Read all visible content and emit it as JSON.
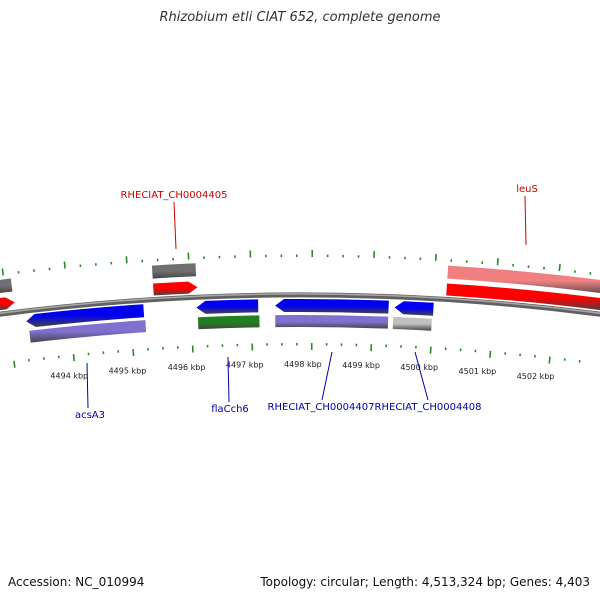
{
  "title": "Rhizobium etli CIAT 652, complete genome",
  "footer": {
    "accession": "Accession: NC_010994",
    "topology": "Topology: circular; Length: 4,513,324 bp; Genes: 4,403"
  },
  "colors": {
    "backbone": "#808080",
    "tick": "#2a8a2a",
    "forward_gene": "#ff0000",
    "forward_feature": "#f08080",
    "forward_label": "#cc0000",
    "reverse_gene": "#0000ee",
    "reverse_feature": "#8070d0",
    "reverse_label": "#0000aa",
    "rna_gene": "#208020",
    "pseudo_gene": "#707070",
    "pseudo_feature": "#c0c0c0"
  },
  "scale": {
    "unit": "kbp",
    "major_ticks_kbp": [
      4494,
      4495,
      4496,
      4497,
      4498,
      4499,
      4500,
      4501,
      4502
    ],
    "tick_labels": [
      "4494 kbp",
      "4495 kbp",
      "4496 kbp",
      "4497 kbp",
      "4498 kbp",
      "4499 kbp",
      "4500 kbp",
      "4501 kbp",
      "4502 kbp"
    ]
  },
  "labels": {
    "RHECIAT_CH0004405": "RHECIAT_CH0004405",
    "leuS": "leuS",
    "acsA3": "acsA3",
    "flaCch6": "flaCch6",
    "RHECIAT_CH0004407": "RHECIAT_CH0004407",
    "RHECIAT_CH0004408": "RHECIAT_CH0004408"
  }
}
